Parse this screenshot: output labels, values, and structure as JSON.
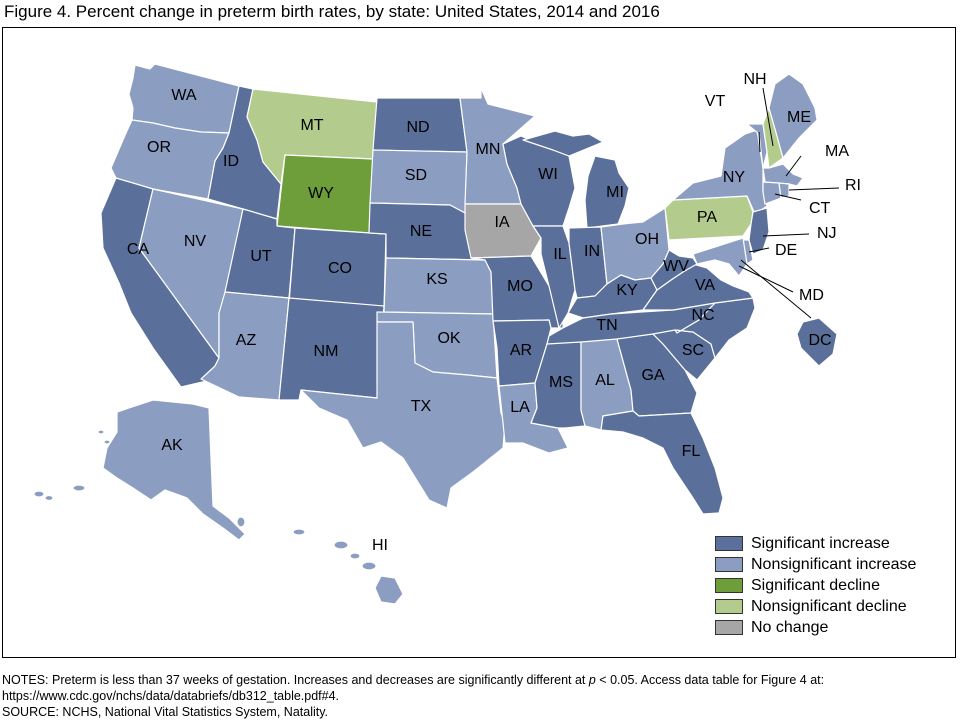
{
  "title": "Figure 4. Percent change in preterm birth rates, by state: United States, 2014 and 2016",
  "legend": [
    {
      "key": "sig_increase",
      "label": "Significant increase",
      "color": "#5a6f99"
    },
    {
      "key": "nonsig_increase",
      "label": "Nonsignificant increase",
      "color": "#8c9dc2"
    },
    {
      "key": "sig_decline",
      "label": "Significant decline",
      "color": "#6e9e3a"
    },
    {
      "key": "nonsig_decline",
      "label": "Nonsignificant decline",
      "color": "#b3cc8e"
    },
    {
      "key": "no_change",
      "label": "No change",
      "color": "#a6a6a6"
    }
  ],
  "states": {
    "WA": "nonsig_increase",
    "OR": "nonsig_increase",
    "CA": "sig_increase",
    "ID": "sig_increase",
    "NV": "nonsig_increase",
    "MT": "nonsig_decline",
    "WY": "sig_decline",
    "UT": "sig_increase",
    "AZ": "nonsig_increase",
    "CO": "sig_increase",
    "NM": "sig_increase",
    "ND": "sig_increase",
    "SD": "nonsig_increase",
    "NE": "sig_increase",
    "KS": "nonsig_increase",
    "OK": "nonsig_increase",
    "TX": "nonsig_increase",
    "MN": "nonsig_increase",
    "IA": "no_change",
    "MO": "sig_increase",
    "AR": "sig_increase",
    "LA": "nonsig_increase",
    "WI": "sig_increase",
    "IL": "sig_increase",
    "MI": "sig_increase",
    "IN": "sig_increase",
    "OH": "nonsig_increase",
    "KY": "sig_increase",
    "TN": "sig_increase",
    "MS": "sig_increase",
    "AL": "nonsig_increase",
    "GA": "sig_increase",
    "FL": "sig_increase",
    "SC": "sig_increase",
    "NC": "sig_increase",
    "VA": "sig_increase",
    "WV": "sig_increase",
    "PA": "nonsig_decline",
    "NY": "nonsig_increase",
    "VT": "nonsig_increase",
    "NH": "nonsig_decline",
    "ME": "nonsig_increase",
    "MA": "nonsig_increase",
    "RI": "nonsig_increase",
    "CT": "nonsig_increase",
    "NJ": "sig_increase",
    "DE": "nonsig_increase",
    "MD": "nonsig_increase",
    "DC": "sig_increase",
    "AK": "nonsig_increase",
    "HI": "nonsig_increase"
  },
  "notes": {
    "line1_a": "NOTES: Preterm is less than 37 weeks of gestation. Increases and decreases are significantly different at ",
    "line1_p": "p",
    "line1_b": " < 0.05. Access data table for Figure 4 at:",
    "line2": "https://www.cdc.gov/nchs/data/databriefs/db312_table.pdf#4.",
    "line3": "SOURCE: NCHS, National Vital Statistics System, Natality."
  }
}
